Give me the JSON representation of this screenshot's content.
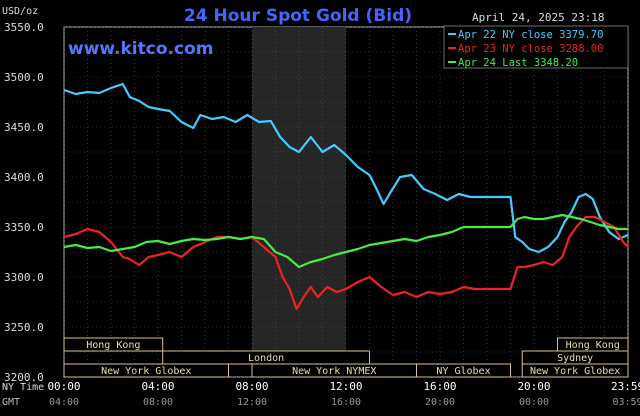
{
  "chart_data": {
    "type": "line",
    "title": "24 Hour Spot Gold (Bid)",
    "watermark": "www.kitco.com",
    "timestamp": "April 24, 2025 23:18",
    "ylabel": "USD/oz",
    "ylim": [
      3200,
      3550
    ],
    "yticks": [
      "3550.0",
      "3500.0",
      "3450.0",
      "3400.0",
      "3350.0",
      "3300.0",
      "3250.0",
      "3200.0"
    ],
    "xlim": [
      0,
      24
    ],
    "x_axis_label_ny": "NY Time",
    "x_axis_label_gmt": "GMT",
    "xticks_ny": [
      "00:00",
      "04:00",
      "08:00",
      "12:00",
      "16:00",
      "20:00",
      "23:59"
    ],
    "xticks_gmt": [
      "04:00",
      "08:00",
      "12:00",
      "16:00",
      "20:00",
      "00:00",
      "03:59"
    ],
    "shaded_hours": [
      8,
      12
    ],
    "grid": true,
    "legend_position": "top-right",
    "sessions": [
      {
        "name": "Hong Kong",
        "start": 0.0,
        "end": 4.2,
        "row": 0
      },
      {
        "name": "London",
        "start": 4.2,
        "end": 13.0,
        "row": 1
      },
      {
        "name": "New York Globex",
        "start": 0.0,
        "end": 7.0,
        "row": 2
      },
      {
        "name": "New York NYMEX",
        "start": 8.0,
        "end": 15.0,
        "row": 2
      },
      {
        "name": "NY Globex",
        "start": 15.0,
        "end": 19.0,
        "row": 2
      },
      {
        "name": "Hong Kong",
        "start": 21.0,
        "end": 24.0,
        "row": 0
      },
      {
        "name": "Sydney",
        "start": 19.5,
        "end": 24.0,
        "row": 1
      },
      {
        "name": "New York Globex",
        "start": 19.5,
        "end": 24.0,
        "row": 2
      }
    ],
    "series": [
      {
        "name": "Apr 22 NY close 3379.70",
        "color": "#44ccff",
        "x": [
          0,
          0.5,
          1,
          1.5,
          2,
          2.5,
          2.8,
          3.2,
          3.6,
          4,
          4.5,
          5,
          5.5,
          5.8,
          6.3,
          6.8,
          7.3,
          7.8,
          8.3,
          8.8,
          9.2,
          9.6,
          10,
          10.5,
          11,
          11.5,
          12,
          12.5,
          13,
          13.3,
          13.6,
          13.9,
          14.3,
          14.8,
          15.3,
          15.8,
          16.3,
          16.8,
          17.3,
          17.8,
          18.2,
          18.6,
          19,
          19.2,
          19.5,
          19.8,
          20.2,
          20.6,
          21,
          21.3,
          21.6,
          21.9,
          22.2,
          22.5,
          22.8,
          23.2,
          23.6,
          24
        ],
        "y": [
          3487,
          3483,
          3485,
          3484,
          3489,
          3493,
          3480,
          3476,
          3470,
          3468,
          3466,
          3455,
          3449,
          3462,
          3458,
          3460,
          3455,
          3462,
          3455,
          3456,
          3440,
          3430,
          3425,
          3440,
          3425,
          3432,
          3422,
          3410,
          3402,
          3388,
          3373,
          3385,
          3400,
          3402,
          3388,
          3383,
          3377,
          3383,
          3380,
          3380,
          3380,
          3380,
          3380,
          3340,
          3335,
          3328,
          3325,
          3330,
          3340,
          3355,
          3365,
          3380,
          3383,
          3378,
          3360,
          3345,
          3338,
          3342
        ]
      },
      {
        "name": "Apr 23 NY close 3288.00",
        "color": "#ee2222",
        "x": [
          0,
          0.5,
          1,
          1.5,
          2,
          2.5,
          2.8,
          3.2,
          3.6,
          4,
          4.5,
          5,
          5.5,
          6,
          6.5,
          7,
          7.5,
          8,
          8.5,
          9,
          9.3,
          9.6,
          9.9,
          10.2,
          10.5,
          10.8,
          11.2,
          11.6,
          12,
          12.5,
          13,
          13.5,
          14,
          14.5,
          15,
          15.5,
          16,
          16.5,
          17,
          17.5,
          18,
          18.5,
          19,
          19.3,
          19.6,
          20,
          20.4,
          20.8,
          21.2,
          21.5,
          21.8,
          22.2,
          22.6,
          23,
          23.4,
          23.8,
          24
        ],
        "y": [
          3340,
          3343,
          3348,
          3345,
          3335,
          3320,
          3318,
          3312,
          3320,
          3322,
          3325,
          3320,
          3330,
          3335,
          3340,
          3340,
          3338,
          3340,
          3330,
          3320,
          3300,
          3288,
          3268,
          3280,
          3290,
          3280,
          3290,
          3285,
          3288,
          3295,
          3300,
          3290,
          3282,
          3285,
          3280,
          3285,
          3283,
          3285,
          3290,
          3288,
          3288,
          3288,
          3288,
          3310,
          3310,
          3312,
          3315,
          3312,
          3320,
          3340,
          3350,
          3360,
          3360,
          3355,
          3350,
          3335,
          3330
        ]
      },
      {
        "name": "Apr 24 Last 3348.20",
        "color": "#44ee44",
        "x": [
          0,
          0.5,
          1,
          1.5,
          2,
          2.5,
          3,
          3.5,
          4,
          4.5,
          5,
          5.5,
          6,
          6.5,
          7,
          7.5,
          8,
          8.5,
          9,
          9.5,
          10,
          10.5,
          11,
          11.5,
          12,
          12.5,
          13,
          13.5,
          14,
          14.5,
          15,
          15.5,
          16,
          16.5,
          17,
          17.5,
          18,
          18.5,
          19,
          19.3,
          19.6,
          20,
          20.4,
          20.8,
          21.2,
          21.6,
          22,
          22.4,
          22.8,
          23.2,
          23.6,
          24
        ],
        "y": [
          3330,
          3332,
          3329,
          3330,
          3326,
          3328,
          3330,
          3335,
          3336,
          3333,
          3336,
          3338,
          3337,
          3338,
          3340,
          3338,
          3340,
          3338,
          3325,
          3320,
          3310,
          3315,
          3318,
          3322,
          3325,
          3328,
          3332,
          3334,
          3336,
          3338,
          3336,
          3340,
          3342,
          3345,
          3350,
          3350,
          3350,
          3350,
          3350,
          3358,
          3360,
          3358,
          3358,
          3360,
          3362,
          3360,
          3358,
          3355,
          3352,
          3350,
          3348,
          3348
        ]
      }
    ]
  }
}
